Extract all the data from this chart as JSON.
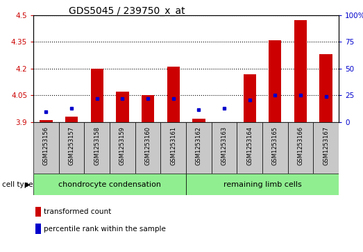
{
  "title": "GDS5045 / 239750_x_at",
  "samples": [
    "GSM1253156",
    "GSM1253157",
    "GSM1253158",
    "GSM1253159",
    "GSM1253160",
    "GSM1253161",
    "GSM1253162",
    "GSM1253163",
    "GSM1253164",
    "GSM1253165",
    "GSM1253166",
    "GSM1253167"
  ],
  "transformed_count": [
    3.91,
    3.93,
    4.2,
    4.07,
    4.05,
    4.21,
    3.92,
    3.9,
    4.17,
    4.36,
    4.47,
    4.28
  ],
  "percentile_rank": [
    10,
    13,
    22,
    22,
    22,
    22,
    12,
    13,
    21,
    25,
    25,
    24
  ],
  "ymin": 3.9,
  "ymax": 4.5,
  "y2min": 0,
  "y2max": 100,
  "yticks": [
    3.9,
    4.05,
    4.2,
    4.35,
    4.5
  ],
  "y2ticks": [
    0,
    25,
    50,
    75,
    100
  ],
  "bar_color": "#cc0000",
  "dot_color": "#0000cc",
  "bar_width": 0.5,
  "group1_label": "chondrocyte condensation",
  "group2_label": "remaining limb cells",
  "group1_indices": [
    0,
    1,
    2,
    3,
    4,
    5
  ],
  "group2_indices": [
    6,
    7,
    8,
    9,
    10,
    11
  ],
  "cell_type_label": "cell type",
  "legend1": "transformed count",
  "legend2": "percentile rank within the sample",
  "grid_color": "#000000",
  "bg_plot": "#ffffff",
  "bg_label": "#c8c8c8",
  "bg_group": "#90ee90",
  "left_tick_color": "#cc0000",
  "right_tick_color": "#0000cc",
  "title_fontsize": 10,
  "tick_fontsize": 7.5,
  "sample_fontsize": 6,
  "group_fontsize": 8,
  "legend_fontsize": 7.5
}
